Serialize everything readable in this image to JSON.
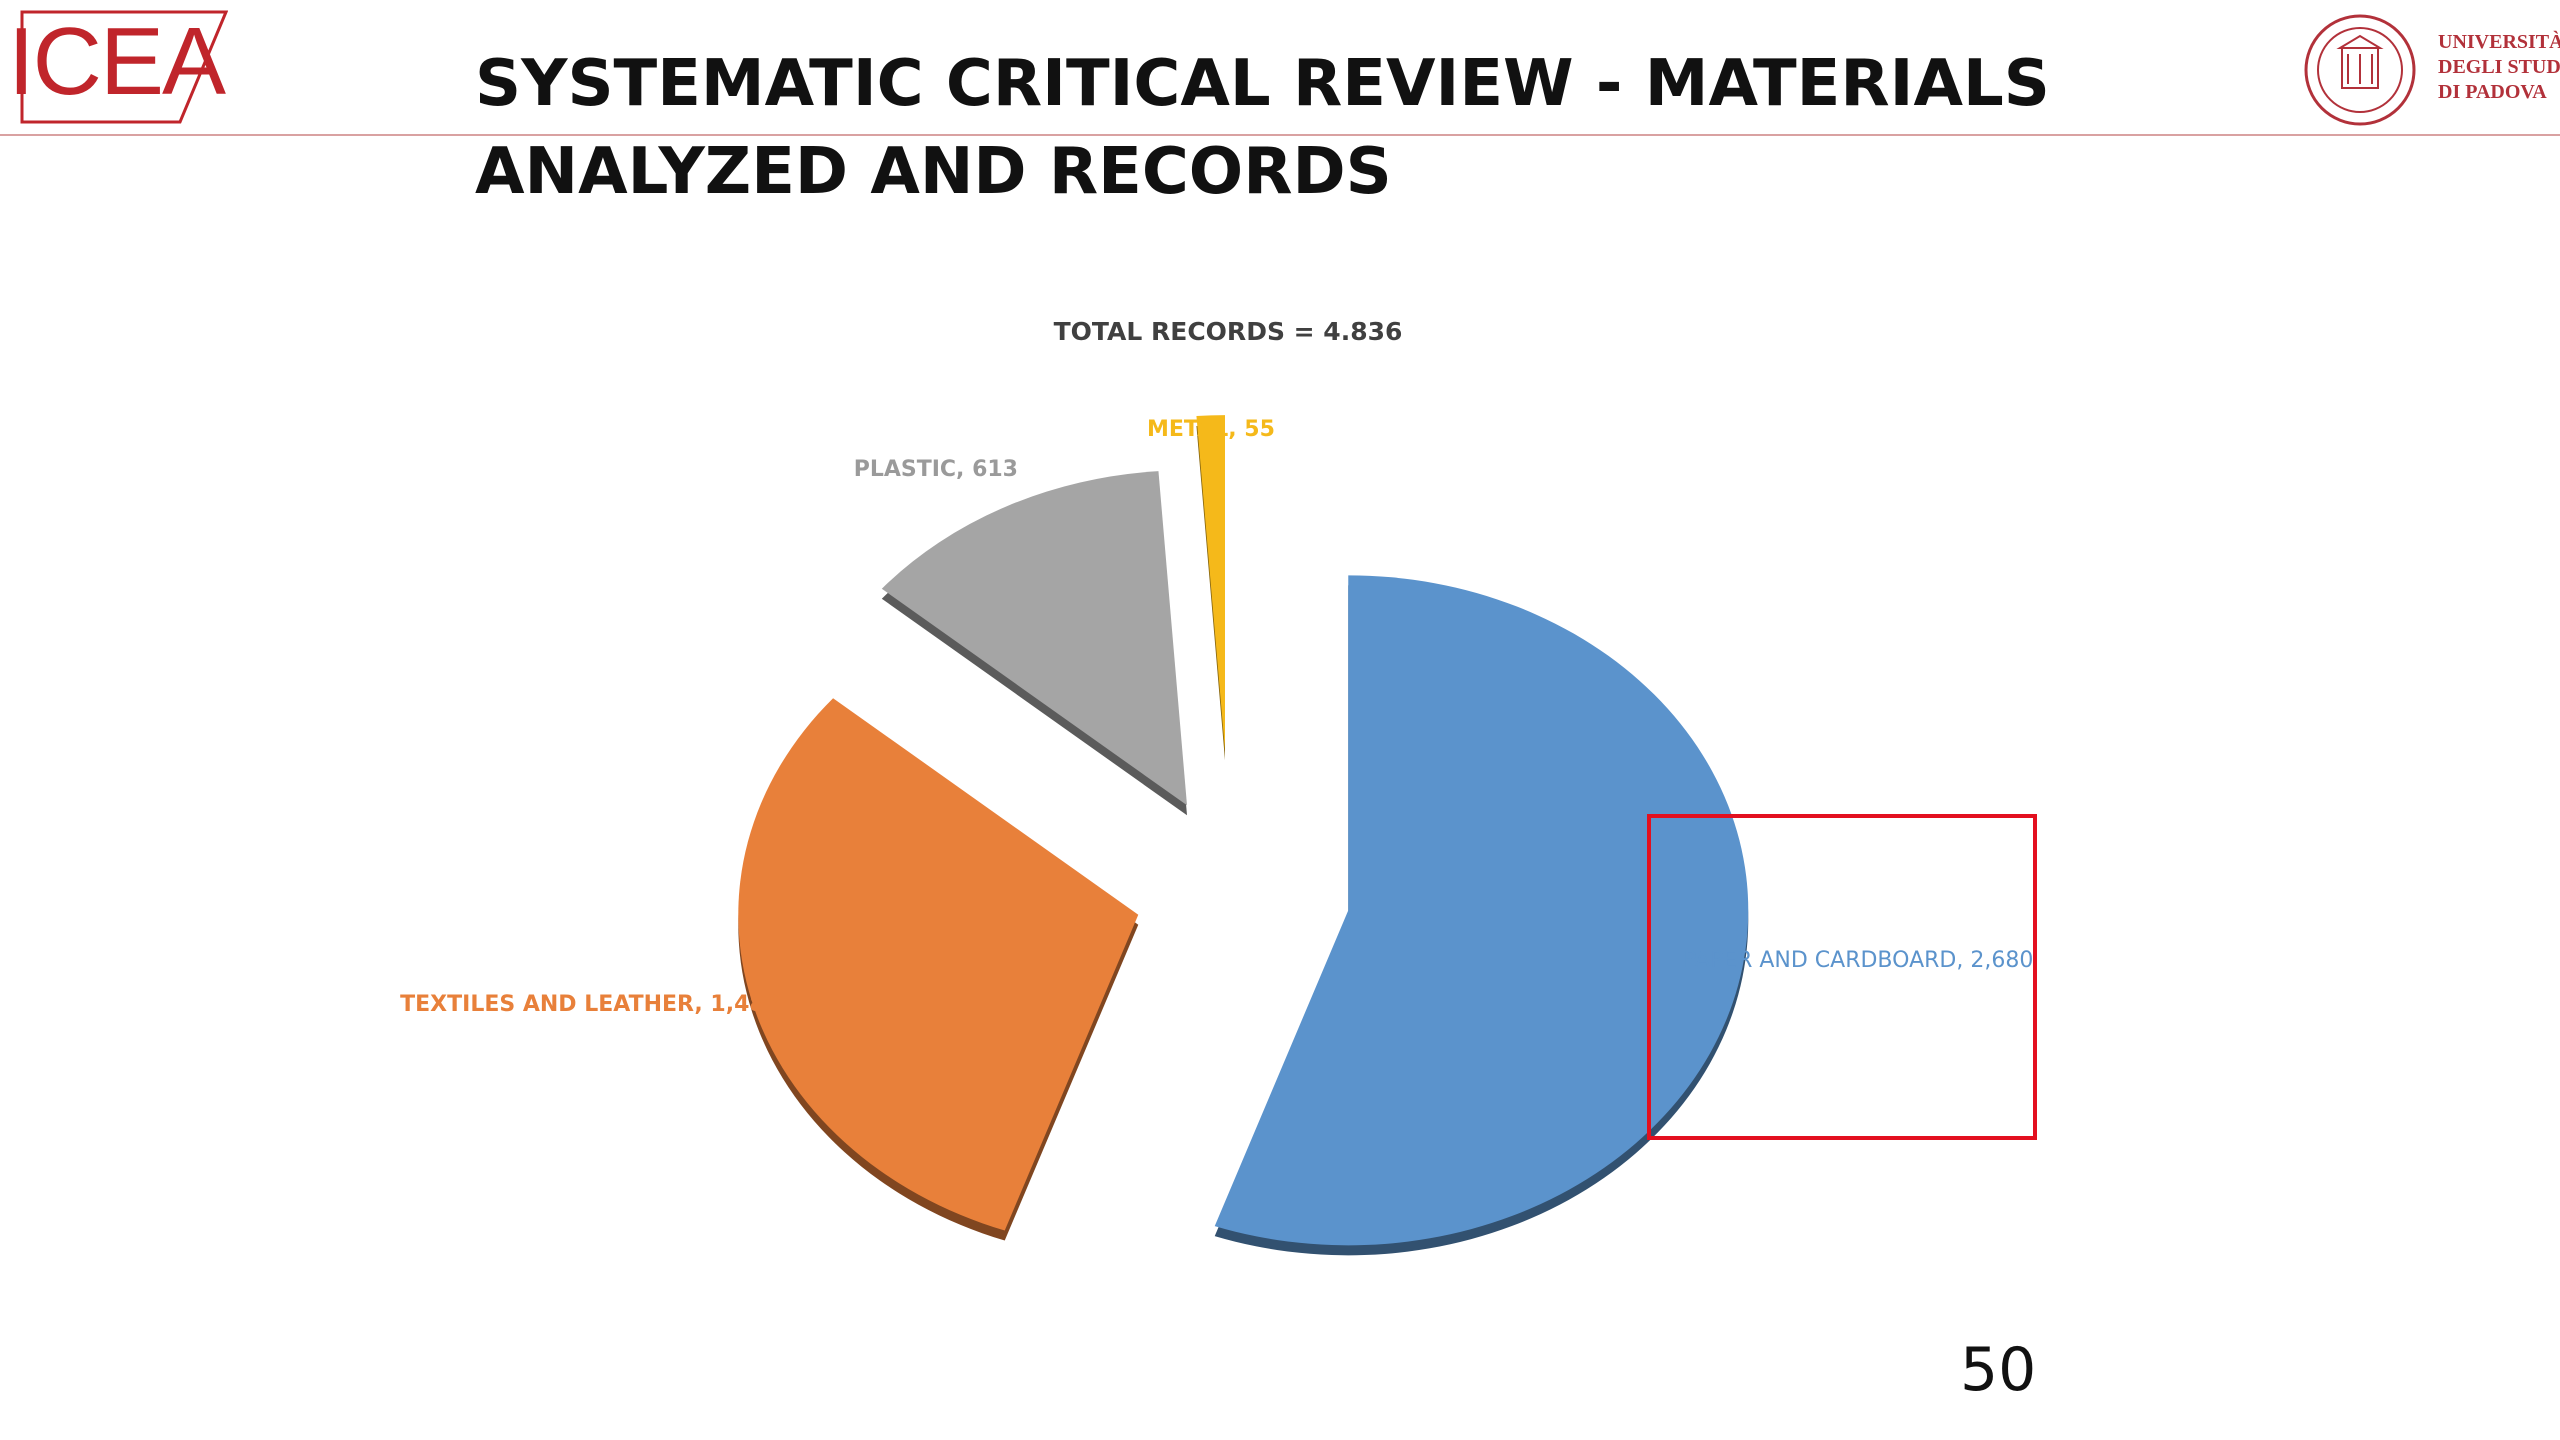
{
  "header": {
    "logo_text": "ICEA",
    "title_line1": "SYSTEMATIC CRITICAL REVIEW - MATERIALS",
    "title_line2": "ANALYZED AND RECORDS",
    "university": [
      "UNIVERSITÀ",
      "DEGLI STUDI",
      "DI PADOVA"
    ]
  },
  "chart_data": {
    "type": "pie",
    "title": "TOTAL RECORDS = 4.836",
    "slices": [
      {
        "label": "PAPER AND CARDBOARD",
        "value": 2680,
        "value_text": "2,680",
        "color": "#5b93cc"
      },
      {
        "label": "TEXTILES AND LEATHER",
        "value": 1488,
        "value_text": "1,488",
        "color": "#e8803a"
      },
      {
        "label": "PLASTIC",
        "value": 613,
        "value_text": "613",
        "color": "#a5a5a5"
      },
      {
        "label": "METAL",
        "value": 55,
        "value_text": "55",
        "color": "#f5b91a"
      }
    ],
    "exploded": true,
    "legend": "none",
    "data_labels": "outside"
  },
  "footer": {
    "slide_number": "50"
  },
  "colors": {
    "accent": "#c0252b",
    "highlight": "#e3101f"
  }
}
